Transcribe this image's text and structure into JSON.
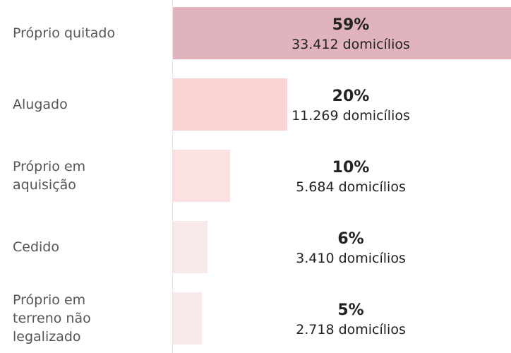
{
  "chart_data": {
    "type": "bar",
    "orientation": "horizontal",
    "categories": [
      "Próprio quitado",
      "Alugado",
      "Próprio em aquisição",
      "Cedido",
      "Próprio em terreno não legalizado"
    ],
    "values": [
      59,
      20,
      10,
      6,
      5
    ],
    "value_labels": [
      "59%",
      "20%",
      "10%",
      "6%",
      "5%"
    ],
    "household_labels": [
      "33.412 domicílios",
      "11.269 domicílios",
      "5.684 domicílios",
      "3.410 domicílios",
      "2.718 domicílios"
    ],
    "colors": [
      "#e0b3bd",
      "#f9d3d0",
      "#fce1e2",
      "#f8e8e8",
      "#f8eaea"
    ]
  }
}
